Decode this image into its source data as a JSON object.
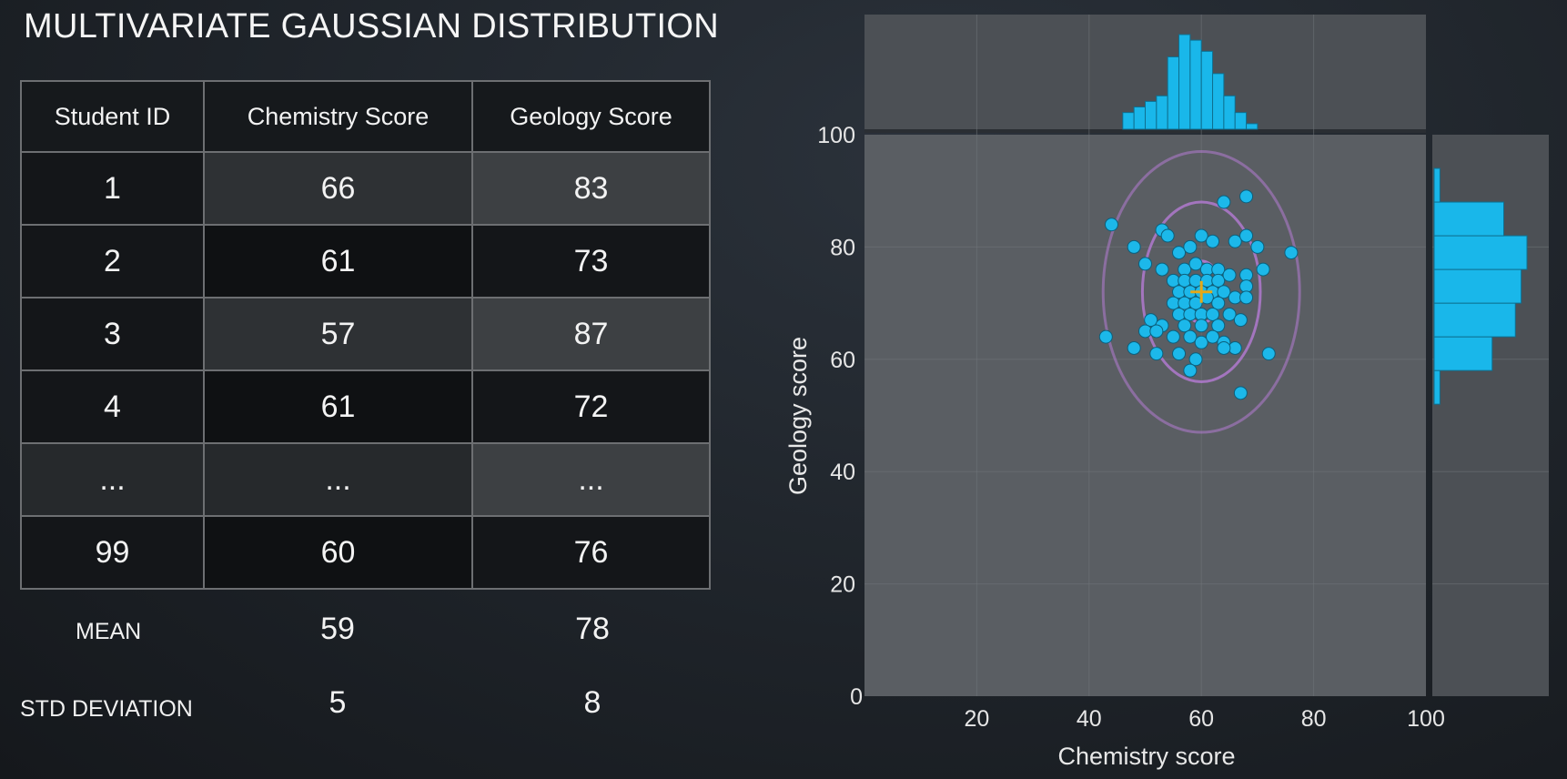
{
  "title": "MULTIVARIATE GAUSSIAN DISTRIBUTION",
  "table": {
    "headers": [
      "Student ID",
      "Chemistry Score",
      "Geology Score"
    ],
    "rows": [
      [
        "1",
        "66",
        "83"
      ],
      [
        "2",
        "61",
        "73"
      ],
      [
        "3",
        "57",
        "87"
      ],
      [
        "4",
        "61",
        "72"
      ],
      [
        "...",
        "...",
        "..."
      ],
      [
        "99",
        "60",
        "76"
      ]
    ]
  },
  "stats": {
    "mean_label": "MEAN",
    "mean_chem": "59",
    "mean_geo": "78",
    "std_label": "STD DEVIATION",
    "std_chem": "5",
    "std_geo": "8"
  },
  "colors": {
    "point": "#1cb8ea",
    "bar": "#19b7ea",
    "ellipse": "#b57bd4",
    "center": "#e6a817",
    "panel": "#5a5e63",
    "grid": "#70757a"
  },
  "chart_data": {
    "type": "scatter",
    "xlabel": "Chemistry score",
    "ylabel": "Geology score",
    "xlim": [
      0,
      100
    ],
    "ylim": [
      0,
      100
    ],
    "xticks": [
      20,
      40,
      60,
      80,
      100
    ],
    "yticks": [
      0,
      20,
      40,
      60,
      80,
      100
    ],
    "center": [
      60,
      72
    ],
    "ellipses": [
      {
        "rx": 3.5,
        "ry": 5.5,
        "opacity": 0.9
      },
      {
        "rx": 10.5,
        "ry": 16,
        "opacity": 0.8
      },
      {
        "rx": 17.5,
        "ry": 25,
        "opacity": 0.55
      }
    ],
    "points": [
      [
        44,
        84
      ],
      [
        48,
        80
      ],
      [
        53,
        83
      ],
      [
        54,
        82
      ],
      [
        50,
        77
      ],
      [
        53,
        76
      ],
      [
        56,
        79
      ],
      [
        58,
        80
      ],
      [
        60,
        82
      ],
      [
        62,
        81
      ],
      [
        66,
        81
      ],
      [
        68,
        82
      ],
      [
        70,
        80
      ],
      [
        76,
        79
      ],
      [
        57,
        76
      ],
      [
        59,
        77
      ],
      [
        61,
        76
      ],
      [
        63,
        76
      ],
      [
        55,
        74
      ],
      [
        57,
        74
      ],
      [
        59,
        74
      ],
      [
        61,
        74
      ],
      [
        63,
        74
      ],
      [
        65,
        75
      ],
      [
        68,
        75
      ],
      [
        71,
        76
      ],
      [
        56,
        72
      ],
      [
        58,
        72
      ],
      [
        60,
        72
      ],
      [
        62,
        72
      ],
      [
        64,
        72
      ],
      [
        68,
        73
      ],
      [
        55,
        70
      ],
      [
        57,
        70
      ],
      [
        59,
        70
      ],
      [
        61,
        71
      ],
      [
        63,
        70
      ],
      [
        66,
        71
      ],
      [
        68,
        71
      ],
      [
        56,
        68
      ],
      [
        58,
        68
      ],
      [
        60,
        68
      ],
      [
        62,
        68
      ],
      [
        65,
        68
      ],
      [
        51,
        67
      ],
      [
        53,
        66
      ],
      [
        57,
        66
      ],
      [
        60,
        66
      ],
      [
        63,
        66
      ],
      [
        67,
        67
      ],
      [
        50,
        65
      ],
      [
        52,
        65
      ],
      [
        55,
        64
      ],
      [
        58,
        64
      ],
      [
        60,
        63
      ],
      [
        62,
        64
      ],
      [
        64,
        63
      ],
      [
        66,
        62
      ],
      [
        43,
        64
      ],
      [
        48,
        62
      ],
      [
        52,
        61
      ],
      [
        56,
        61
      ],
      [
        59,
        60
      ],
      [
        64,
        62
      ],
      [
        72,
        61
      ],
      [
        58,
        58
      ],
      [
        67,
        54
      ],
      [
        64,
        88
      ],
      [
        68,
        89
      ]
    ],
    "top_histogram": {
      "bin_start": 46,
      "bin_width": 2,
      "counts": [
        3,
        4,
        5,
        6,
        13,
        17,
        16,
        14,
        10,
        6,
        3,
        1
      ]
    },
    "right_histogram": {
      "bin_start": 52,
      "bin_width": 6,
      "counts": [
        1,
        10,
        14,
        15,
        16,
        12,
        1
      ]
    }
  }
}
